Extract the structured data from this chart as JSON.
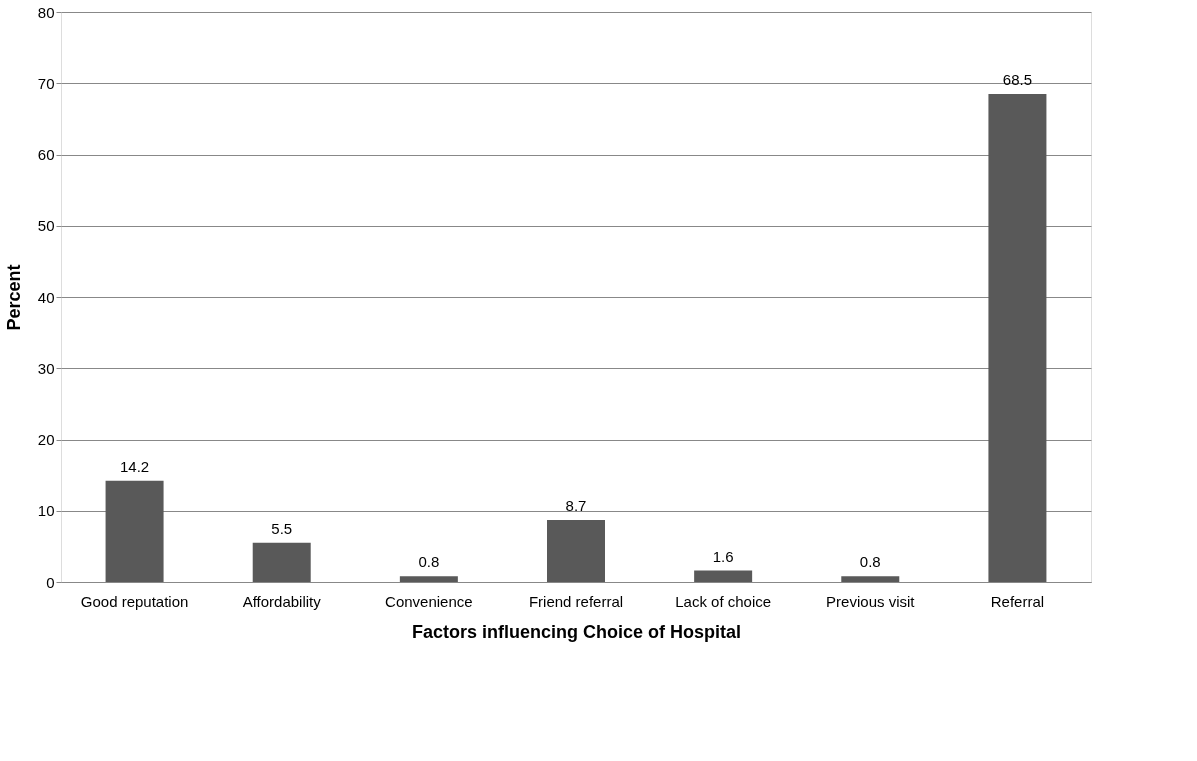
{
  "chart_data": {
    "type": "bar",
    "xlabel": "Factors influencing Choice of Hospital",
    "ylabel": "Percent",
    "categories": [
      "Good reputation",
      "Affordability",
      "Convenience",
      "Friend referral",
      "Lack of choice",
      "Previous visit",
      "Referral"
    ],
    "values": [
      14.2,
      5.5,
      0.8,
      8.7,
      1.6,
      0.8,
      68.5
    ],
    "color": "#595959",
    "ylim": [
      0,
      80
    ],
    "yticks": [
      0,
      10,
      20,
      30,
      40,
      50,
      60,
      70,
      80
    ],
    "grid": "y",
    "data_labels": true
  }
}
